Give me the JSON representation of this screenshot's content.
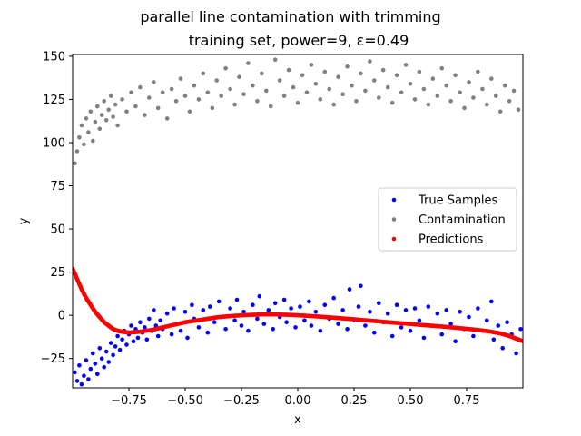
{
  "chart_data": {
    "type": "scatter",
    "title": "parallel line contamination with trimming",
    "subtitle": "training set, power=9, ε=0.49",
    "xlabel": "x",
    "ylabel": "y",
    "xlim": [
      -1.0,
      1.0
    ],
    "ylim": [
      -42,
      151
    ],
    "xticks": [
      -0.75,
      -0.5,
      -0.25,
      0.0,
      0.25,
      0.5,
      0.75
    ],
    "xtick_labels": [
      "−0.75",
      "−0.50",
      "−0.25",
      "0.00",
      "0.25",
      "0.50",
      "0.75"
    ],
    "yticks": [
      -25,
      0,
      25,
      50,
      75,
      100,
      125,
      150
    ],
    "ytick_labels": [
      "−25",
      "0",
      "25",
      "50",
      "75",
      "100",
      "125",
      "150"
    ],
    "grid": false,
    "legend_position": "center-right",
    "series": [
      {
        "name": "True Samples",
        "color": "#0000ff",
        "points": [
          [
            -0.99,
            -33
          ],
          [
            -0.98,
            -38
          ],
          [
            -0.97,
            -29
          ],
          [
            -0.96,
            -40
          ],
          [
            -0.95,
            -35
          ],
          [
            -0.94,
            -26
          ],
          [
            -0.93,
            -37
          ],
          [
            -0.92,
            -31
          ],
          [
            -0.91,
            -22
          ],
          [
            -0.9,
            -28
          ],
          [
            -0.89,
            -34
          ],
          [
            -0.88,
            -19
          ],
          [
            -0.87,
            -25
          ],
          [
            -0.86,
            -30
          ],
          [
            -0.85,
            -21
          ],
          [
            -0.84,
            -27
          ],
          [
            -0.83,
            -16
          ],
          [
            -0.82,
            -23
          ],
          [
            -0.81,
            -18
          ],
          [
            -0.8,
            -12
          ],
          [
            -0.79,
            -20
          ],
          [
            -0.78,
            -14
          ],
          [
            -0.77,
            -9
          ],
          [
            -0.76,
            -17
          ],
          [
            -0.75,
            -11
          ],
          [
            -0.74,
            -6
          ],
          [
            -0.73,
            -15
          ],
          [
            -0.72,
            -8
          ],
          [
            -0.71,
            -13
          ],
          [
            -0.7,
            -4
          ],
          [
            -0.69,
            -10
          ],
          [
            -0.68,
            -7
          ],
          [
            -0.67,
            -14
          ],
          [
            -0.66,
            -2
          ],
          [
            -0.65,
            -9
          ],
          [
            -0.64,
            3
          ],
          [
            -0.63,
            -6
          ],
          [
            -0.62,
            -12
          ],
          [
            -0.61,
            -3
          ],
          [
            -0.6,
            -8
          ],
          [
            -0.58,
            1
          ],
          [
            -0.56,
            -11
          ],
          [
            -0.55,
            4
          ],
          [
            -0.54,
            -5
          ],
          [
            -0.52,
            -9
          ],
          [
            -0.5,
            2
          ],
          [
            -0.49,
            -13
          ],
          [
            -0.47,
            6
          ],
          [
            -0.46,
            -2
          ],
          [
            -0.44,
            -7
          ],
          [
            -0.42,
            3
          ],
          [
            -0.4,
            -10
          ],
          [
            -0.39,
            5
          ],
          [
            -0.37,
            -4
          ],
          [
            -0.35,
            8
          ],
          [
            -0.34,
            -1
          ],
          [
            -0.32,
            -8
          ],
          [
            -0.3,
            4
          ],
          [
            -0.28,
            -3
          ],
          [
            -0.27,
            9
          ],
          [
            -0.25,
            -6
          ],
          [
            -0.24,
            2
          ],
          [
            -0.22,
            -9
          ],
          [
            -0.2,
            6
          ],
          [
            -0.18,
            -2
          ],
          [
            -0.17,
            11
          ],
          [
            -0.15,
            -5
          ],
          [
            -0.13,
            3
          ],
          [
            -0.11,
            -8
          ],
          [
            -0.1,
            7
          ],
          [
            -0.08,
            -1
          ],
          [
            -0.06,
            9
          ],
          [
            -0.05,
            -4
          ],
          [
            -0.03,
            4
          ],
          [
            -0.01,
            -7
          ],
          [
            0.01,
            5
          ],
          [
            0.03,
            -3
          ],
          [
            0.05,
            8
          ],
          [
            0.06,
            -6
          ],
          [
            0.08,
            2
          ],
          [
            0.1,
            -9
          ],
          [
            0.12,
            6
          ],
          [
            0.14,
            -2
          ],
          [
            0.16,
            10
          ],
          [
            0.18,
            -5
          ],
          [
            0.2,
            3
          ],
          [
            0.22,
            -8
          ],
          [
            0.23,
            15
          ],
          [
            0.25,
            -3
          ],
          [
            0.27,
            5
          ],
          [
            0.28,
            17
          ],
          [
            0.3,
            -6
          ],
          [
            0.32,
            2
          ],
          [
            0.34,
            -10
          ],
          [
            0.36,
            7
          ],
          [
            0.38,
            -4
          ],
          [
            0.4,
            1
          ],
          [
            0.42,
            -12
          ],
          [
            0.44,
            6
          ],
          [
            0.46,
            -7
          ],
          [
            0.48,
            3
          ],
          [
            0.5,
            -9
          ],
          [
            0.52,
            4
          ],
          [
            0.54,
            -3
          ],
          [
            0.56,
            -13
          ],
          [
            0.58,
            5
          ],
          [
            0.6,
            -6
          ],
          [
            0.62,
            1
          ],
          [
            0.64,
            -11
          ],
          [
            0.66,
            3
          ],
          [
            0.68,
            -5
          ],
          [
            0.7,
            -15
          ],
          [
            0.72,
            2
          ],
          [
            0.74,
            -8
          ],
          [
            0.76,
            -1
          ],
          [
            0.78,
            -12
          ],
          [
            0.8,
            4
          ],
          [
            0.82,
            -9
          ],
          [
            0.84,
            -3
          ],
          [
            0.86,
            8
          ],
          [
            0.87,
            -14
          ],
          [
            0.89,
            -6
          ],
          [
            0.91,
            -19
          ],
          [
            0.93,
            -4
          ],
          [
            0.95,
            -11
          ],
          [
            0.97,
            -22
          ],
          [
            0.99,
            -8
          ]
        ]
      },
      {
        "name": "Contamination",
        "color": "#808080",
        "points": [
          [
            -0.99,
            88
          ],
          [
            -0.98,
            95
          ],
          [
            -0.97,
            103
          ],
          [
            -0.96,
            110
          ],
          [
            -0.95,
            99
          ],
          [
            -0.94,
            114
          ],
          [
            -0.93,
            106
          ],
          [
            -0.92,
            118
          ],
          [
            -0.91,
            101
          ],
          [
            -0.9,
            112
          ],
          [
            -0.89,
            121
          ],
          [
            -0.88,
            108
          ],
          [
            -0.87,
            116
          ],
          [
            -0.86,
            124
          ],
          [
            -0.85,
            113
          ],
          [
            -0.84,
            119
          ],
          [
            -0.83,
            127
          ],
          [
            -0.82,
            115
          ],
          [
            -0.81,
            122
          ],
          [
            -0.8,
            110
          ],
          [
            -0.78,
            125
          ],
          [
            -0.76,
            118
          ],
          [
            -0.74,
            129
          ],
          [
            -0.72,
            121
          ],
          [
            -0.7,
            132
          ],
          [
            -0.68,
            116
          ],
          [
            -0.66,
            126
          ],
          [
            -0.64,
            135
          ],
          [
            -0.62,
            120
          ],
          [
            -0.6,
            129
          ],
          [
            -0.58,
            114
          ],
          [
            -0.56,
            131
          ],
          [
            -0.54,
            124
          ],
          [
            -0.52,
            137
          ],
          [
            -0.5,
            127
          ],
          [
            -0.48,
            118
          ],
          [
            -0.46,
            133
          ],
          [
            -0.44,
            125
          ],
          [
            -0.42,
            140
          ],
          [
            -0.4,
            129
          ],
          [
            -0.38,
            120
          ],
          [
            -0.36,
            136
          ],
          [
            -0.34,
            127
          ],
          [
            -0.32,
            143
          ],
          [
            -0.3,
            131
          ],
          [
            -0.28,
            122
          ],
          [
            -0.26,
            138
          ],
          [
            -0.24,
            128
          ],
          [
            -0.22,
            146
          ],
          [
            -0.2,
            133
          ],
          [
            -0.18,
            124
          ],
          [
            -0.16,
            140
          ],
          [
            -0.14,
            130
          ],
          [
            -0.12,
            121
          ],
          [
            -0.1,
            148
          ],
          [
            -0.08,
            136
          ],
          [
            -0.06,
            127
          ],
          [
            -0.04,
            142
          ],
          [
            -0.02,
            132
          ],
          [
            0.0,
            123
          ],
          [
            0.02,
            139
          ],
          [
            0.04,
            129
          ],
          [
            0.06,
            145
          ],
          [
            0.08,
            134
          ],
          [
            0.1,
            125
          ],
          [
            0.12,
            141
          ],
          [
            0.14,
            131
          ],
          [
            0.16,
            122
          ],
          [
            0.18,
            138
          ],
          [
            0.2,
            128
          ],
          [
            0.22,
            144
          ],
          [
            0.24,
            133
          ],
          [
            0.26,
            124
          ],
          [
            0.28,
            140
          ],
          [
            0.3,
            130
          ],
          [
            0.32,
            147
          ],
          [
            0.34,
            136
          ],
          [
            0.36,
            126
          ],
          [
            0.38,
            142
          ],
          [
            0.4,
            132
          ],
          [
            0.42,
            123
          ],
          [
            0.44,
            139
          ],
          [
            0.46,
            129
          ],
          [
            0.48,
            145
          ],
          [
            0.5,
            134
          ],
          [
            0.52,
            125
          ],
          [
            0.54,
            141
          ],
          [
            0.56,
            131
          ],
          [
            0.58,
            122
          ],
          [
            0.6,
            137
          ],
          [
            0.62,
            127
          ],
          [
            0.64,
            143
          ],
          [
            0.66,
            133
          ],
          [
            0.68,
            124
          ],
          [
            0.7,
            139
          ],
          [
            0.72,
            129
          ],
          [
            0.74,
            120
          ],
          [
            0.76,
            135
          ],
          [
            0.78,
            126
          ],
          [
            0.8,
            141
          ],
          [
            0.82,
            131
          ],
          [
            0.84,
            122
          ],
          [
            0.86,
            137
          ],
          [
            0.88,
            127
          ],
          [
            0.9,
            118
          ],
          [
            0.92,
            133
          ],
          [
            0.94,
            124
          ],
          [
            0.96,
            130
          ],
          [
            0.98,
            119
          ]
        ]
      },
      {
        "name": "Predictions",
        "color": "#ff0000",
        "curve": [
          [
            -1.0,
            27
          ],
          [
            -0.98,
            21
          ],
          [
            -0.96,
            15
          ],
          [
            -0.94,
            10
          ],
          [
            -0.92,
            6
          ],
          [
            -0.9,
            2
          ],
          [
            -0.88,
            -1
          ],
          [
            -0.86,
            -4
          ],
          [
            -0.84,
            -6
          ],
          [
            -0.82,
            -8
          ],
          [
            -0.8,
            -9
          ],
          [
            -0.78,
            -9.5
          ],
          [
            -0.75,
            -10
          ],
          [
            -0.7,
            -9.5
          ],
          [
            -0.65,
            -8.5
          ],
          [
            -0.6,
            -7
          ],
          [
            -0.55,
            -5.5
          ],
          [
            -0.5,
            -4
          ],
          [
            -0.45,
            -3
          ],
          [
            -0.4,
            -2
          ],
          [
            -0.35,
            -1
          ],
          [
            -0.3,
            -0.5
          ],
          [
            -0.25,
            0
          ],
          [
            -0.2,
            0.3
          ],
          [
            -0.15,
            0.5
          ],
          [
            -0.1,
            0.5
          ],
          [
            -0.05,
            0.3
          ],
          [
            0.0,
            0
          ],
          [
            0.05,
            -0.4
          ],
          [
            0.1,
            -0.8
          ],
          [
            0.15,
            -1.3
          ],
          [
            0.2,
            -1.8
          ],
          [
            0.25,
            -2.3
          ],
          [
            0.3,
            -2.9
          ],
          [
            0.35,
            -3.4
          ],
          [
            0.4,
            -4
          ],
          [
            0.45,
            -4.5
          ],
          [
            0.5,
            -5
          ],
          [
            0.55,
            -5.6
          ],
          [
            0.6,
            -6.1
          ],
          [
            0.65,
            -6.6
          ],
          [
            0.7,
            -7.2
          ],
          [
            0.75,
            -7.8
          ],
          [
            0.8,
            -8.5
          ],
          [
            0.85,
            -9.3
          ],
          [
            0.9,
            -10.5
          ],
          [
            0.94,
            -12
          ],
          [
            0.97,
            -13.5
          ],
          [
            1.0,
            -15
          ]
        ]
      }
    ]
  }
}
